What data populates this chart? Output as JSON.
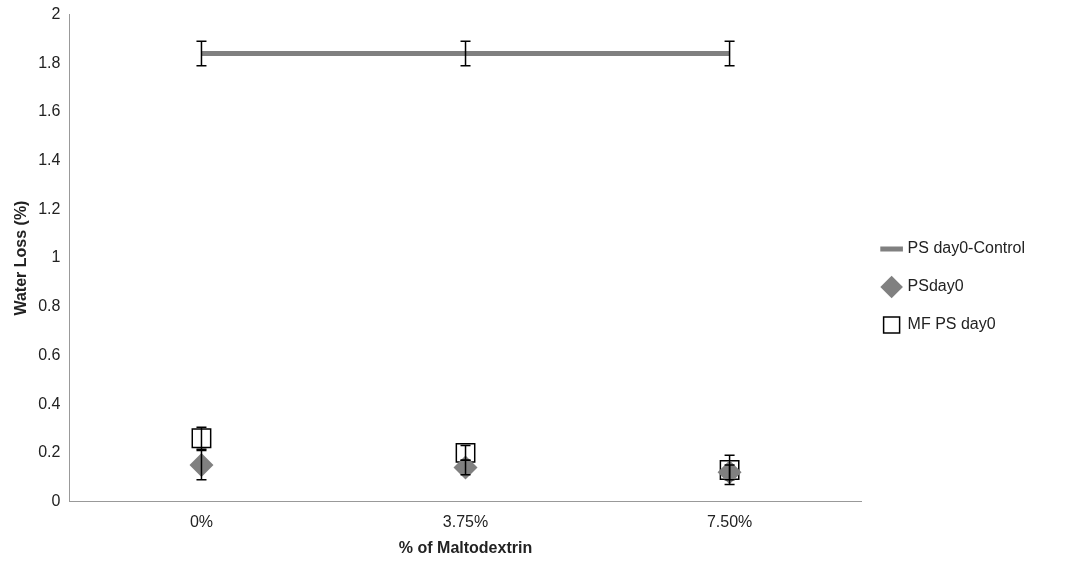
{
  "chart_data": {
    "type": "line",
    "xlabel": "% of Maltodextrin",
    "ylabel": "Water Loss (%)",
    "categories": [
      "0%",
      "3.75%",
      "7.50%"
    ],
    "ylim": [
      0,
      2
    ],
    "yticks": [
      0,
      0.2,
      0.4,
      0.6,
      0.8,
      1,
      1.2,
      1.4,
      1.6,
      1.8,
      2
    ],
    "grid": false,
    "legend": "right",
    "series": [
      {
        "name": "PS day0-Control",
        "marker": "none",
        "color": "#808080",
        "values": [
          1.84,
          1.84,
          1.84
        ],
        "errors": [
          0.05,
          0.05,
          0.05
        ]
      },
      {
        "name": "PSday0",
        "type": "scatter",
        "marker": "diamond",
        "color": "#808080",
        "values": [
          0.15,
          0.14,
          0.12
        ],
        "errors": [
          0.06,
          0.03,
          0.03
        ]
      },
      {
        "name": "MF PS day0",
        "type": "scatter",
        "marker": "square",
        "color": "#000000",
        "values": [
          0.26,
          0.2,
          0.13
        ],
        "errors": [
          0.045,
          0.03,
          0.06
        ]
      }
    ]
  }
}
